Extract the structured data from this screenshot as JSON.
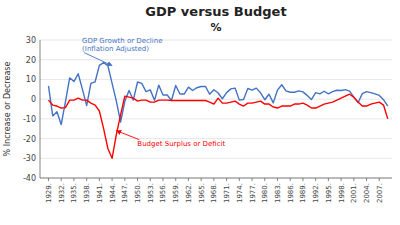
{
  "chart_data": {
    "type": "line",
    "title": "GDP versus Budget",
    "subtitle": "%",
    "y_label": "% Increase or Decrease",
    "grid": true,
    "xlim": [
      1927,
      2010
    ],
    "xticks": [
      {
        "value": 1929,
        "label": "1929."
      },
      {
        "value": 1932,
        "label": "1932."
      },
      {
        "value": 1935,
        "label": "1935."
      },
      {
        "value": 1938,
        "label": "1938."
      },
      {
        "value": 1941,
        "label": "1941."
      },
      {
        "value": 1944,
        "label": "1944."
      },
      {
        "value": 1947,
        "label": "1947."
      },
      {
        "value": 1950,
        "label": "1950."
      },
      {
        "value": 1953,
        "label": "1953."
      },
      {
        "value": 1956,
        "label": "1956."
      },
      {
        "value": 1959,
        "label": "1959."
      },
      {
        "value": 1962,
        "label": "1962."
      },
      {
        "value": 1965,
        "label": "1965."
      },
      {
        "value": 1968,
        "label": "1968."
      },
      {
        "value": 1971,
        "label": "1971."
      },
      {
        "value": 1974,
        "label": "1974."
      },
      {
        "value": 1977,
        "label": "1977."
      },
      {
        "value": 1980,
        "label": "1980."
      },
      {
        "value": 1983,
        "label": "1983."
      },
      {
        "value": 1986,
        "label": "1986."
      },
      {
        "value": 1989,
        "label": "1989."
      },
      {
        "value": 1992,
        "label": "1992."
      },
      {
        "value": 1995,
        "label": "1995."
      },
      {
        "value": 1998,
        "label": "1998."
      },
      {
        "value": 2001,
        "label": "2001."
      },
      {
        "value": 2004,
        "label": "2004."
      },
      {
        "value": 2007,
        "label": "2007."
      }
    ],
    "ylim": [
      -40.0,
      30.0
    ],
    "yticks": [
      -40,
      -30,
      -20,
      -10,
      0,
      10,
      20,
      30
    ],
    "x": [
      1929,
      1930,
      1931,
      1932,
      1933,
      1934,
      1935,
      1936,
      1937,
      1938,
      1939,
      1940,
      1941,
      1942,
      1943,
      1944,
      1945,
      1946,
      1947,
      1948,
      1949,
      1950,
      1951,
      1952,
      1953,
      1954,
      1955,
      1956,
      1957,
      1958,
      1959,
      1960,
      1961,
      1962,
      1963,
      1964,
      1965,
      1966,
      1967,
      1968,
      1969,
      1970,
      1971,
      1972,
      1973,
      1974,
      1975,
      1976,
      1977,
      1978,
      1979,
      1980,
      1981,
      1982,
      1983,
      1984,
      1985,
      1986,
      1987,
      1988,
      1989,
      1990,
      1991,
      1992,
      1993,
      1994,
      1995,
      1996,
      1997,
      1998,
      1999,
      2000,
      2001,
      2002,
      2003,
      2004,
      2005,
      2006,
      2007,
      2008,
      2009
    ],
    "series": [
      {
        "color": "#4472C4",
        "values": [
          6.7,
          -8.5,
          -6.4,
          -12.9,
          -1.3,
          10.8,
          8.9,
          12.9,
          5.1,
          -3.3,
          8.0,
          8.8,
          17.1,
          18.5,
          17.0,
          8.0,
          -1.0,
          -11.6,
          -1.1,
          4.4,
          -0.5,
          8.7,
          8.0,
          3.8,
          4.7,
          -0.6,
          7.1,
          2.1,
          2.1,
          -0.7,
          6.9,
          2.6,
          2.6,
          6.1,
          4.4,
          5.8,
          6.4,
          6.5,
          2.5,
          4.8,
          3.1,
          0.2,
          3.3,
          5.2,
          5.6,
          -0.5,
          -0.2,
          5.4,
          4.6,
          5.6,
          3.2,
          -0.3,
          2.5,
          -1.9,
          4.6,
          7.3,
          4.2,
          3.5,
          3.5,
          4.2,
          3.7,
          1.9,
          -0.2,
          3.3,
          2.7,
          4.0,
          2.7,
          3.8,
          4.5,
          4.4,
          4.8,
          4.1,
          1.0,
          -1.8,
          2.8,
          3.8,
          3.3,
          2.7,
          1.9,
          -0.3,
          -3.5
        ]
      },
      {
        "color": "#FF0000",
        "values": [
          -0.5,
          -3.0,
          -3.5,
          -4.5,
          -4.3,
          -0.5,
          -0.5,
          0.5,
          -0.5,
          -0.5,
          -2.0,
          -3.0,
          -6.0,
          -15.0,
          -25.0,
          -30.0,
          -18.0,
          -8.0,
          1.5,
          1.0,
          0.5,
          -1.0,
          -0.5,
          -0.5,
          -1.5,
          -1.5,
          -0.5,
          -0.5,
          -0.5,
          -0.7,
          -0.7,
          -0.7,
          -0.7,
          -0.7,
          -0.7,
          -0.7,
          -0.7,
          -0.7,
          -1.5,
          -2.5,
          0.5,
          -2.0,
          -2.0,
          -1.5,
          -1.0,
          -2.5,
          -3.5,
          -2.0,
          -2.0,
          -1.5,
          -1.0,
          -2.5,
          -2.5,
          -4.0,
          -4.5,
          -3.5,
          -3.5,
          -3.5,
          -2.5,
          -2.5,
          -2.0,
          -3.0,
          -4.5,
          -4.5,
          -3.5,
          -2.5,
          -2.0,
          -1.5,
          -0.5,
          0.5,
          1.5,
          2.5,
          1.0,
          -1.5,
          -3.5,
          -3.5,
          -2.5,
          -2.0,
          -1.5,
          -3.0,
          -10.0
        ]
      }
    ],
    "annotations": [
      {
        "text": [
          "GDP Growth or Decline",
          "(Inflation Adjusted)"
        ],
        "x": 1944,
        "y": 17.0,
        "color": "#4472C4"
      },
      {
        "text": [
          "Budget Surplus or Deficit"
        ],
        "x": 1945,
        "y": -16.0,
        "color": "#FF0000"
      }
    ]
  }
}
